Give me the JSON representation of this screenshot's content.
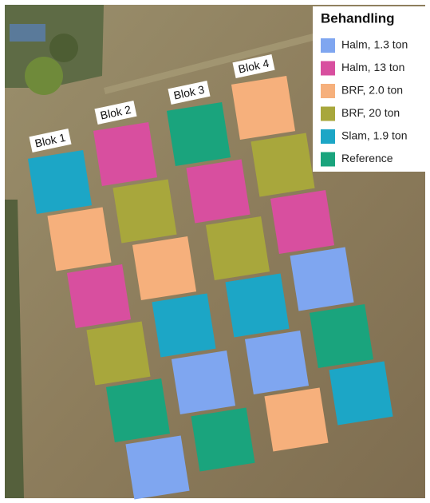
{
  "legend": {
    "title": "Behandling",
    "items": [
      {
        "label": "Halm, 1.3 ton",
        "color": "#7fa6f0"
      },
      {
        "label": "Halm, 13 ton",
        "color": "#d84f9f"
      },
      {
        "label": "BRF, 2.0 ton",
        "color": "#f6b07c"
      },
      {
        "label": "BRF, 20 ton",
        "color": "#a8a73c"
      },
      {
        "label": "Slam, 1.9 ton",
        "color": "#1ca6c6"
      },
      {
        "label": "Reference",
        "color": "#1aa47d"
      }
    ]
  },
  "blocks": [
    {
      "label": "Blok 1",
      "plots": [
        "#1ca6c6",
        "#f6b07c",
        "#d84f9f",
        "#a8a73c",
        "#1aa47d",
        "#7fa6f0"
      ]
    },
    {
      "label": "Blok 2",
      "plots": [
        "#d84f9f",
        "#a8a73c",
        "#f6b07c",
        "#1ca6c6",
        "#7fa6f0",
        "#1aa47d"
      ]
    },
    {
      "label": "Blok 3",
      "plots": [
        "#1aa47d",
        "#d84f9f",
        "#a8a73c",
        "#1ca6c6",
        "#7fa6f0",
        "#f6b07c"
      ]
    },
    {
      "label": "Blok 4",
      "plots": [
        "#f6b07c",
        "#a8a73c",
        "#d84f9f",
        "#7fa6f0",
        "#1aa47d",
        "#1ca6c6"
      ]
    }
  ]
}
